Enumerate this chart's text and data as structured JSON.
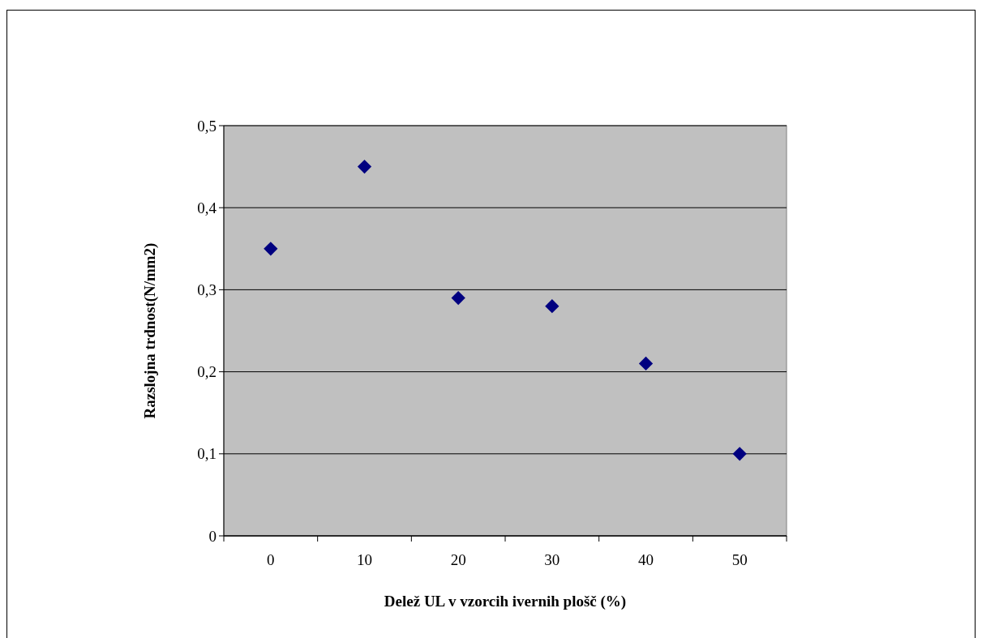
{
  "chart_data": {
    "type": "scatter",
    "xlabel": "Delež UL v vzorcih ivernih plošč (%)",
    "ylabel": "Razslojna trdnost(N/mm2)",
    "categories": [
      "0",
      "10",
      "20",
      "30",
      "40",
      "50"
    ],
    "series": [
      {
        "color": "#000080",
        "values": [
          0.35,
          0.45,
          0.29,
          0.28,
          0.21,
          0.1
        ]
      }
    ],
    "ylim": [
      0,
      0.5
    ],
    "yticks": [
      0,
      {
        "value": 0.1,
        "label": "0,1"
      },
      {
        "value": 0.2,
        "label": "0,2"
      },
      {
        "value": 0.3,
        "label": "0,3"
      },
      {
        "value": 0.4,
        "label": "0,4"
      },
      {
        "value": 0.5,
        "label": "0,5"
      }
    ],
    "grid": "y",
    "marker": "diamond"
  }
}
